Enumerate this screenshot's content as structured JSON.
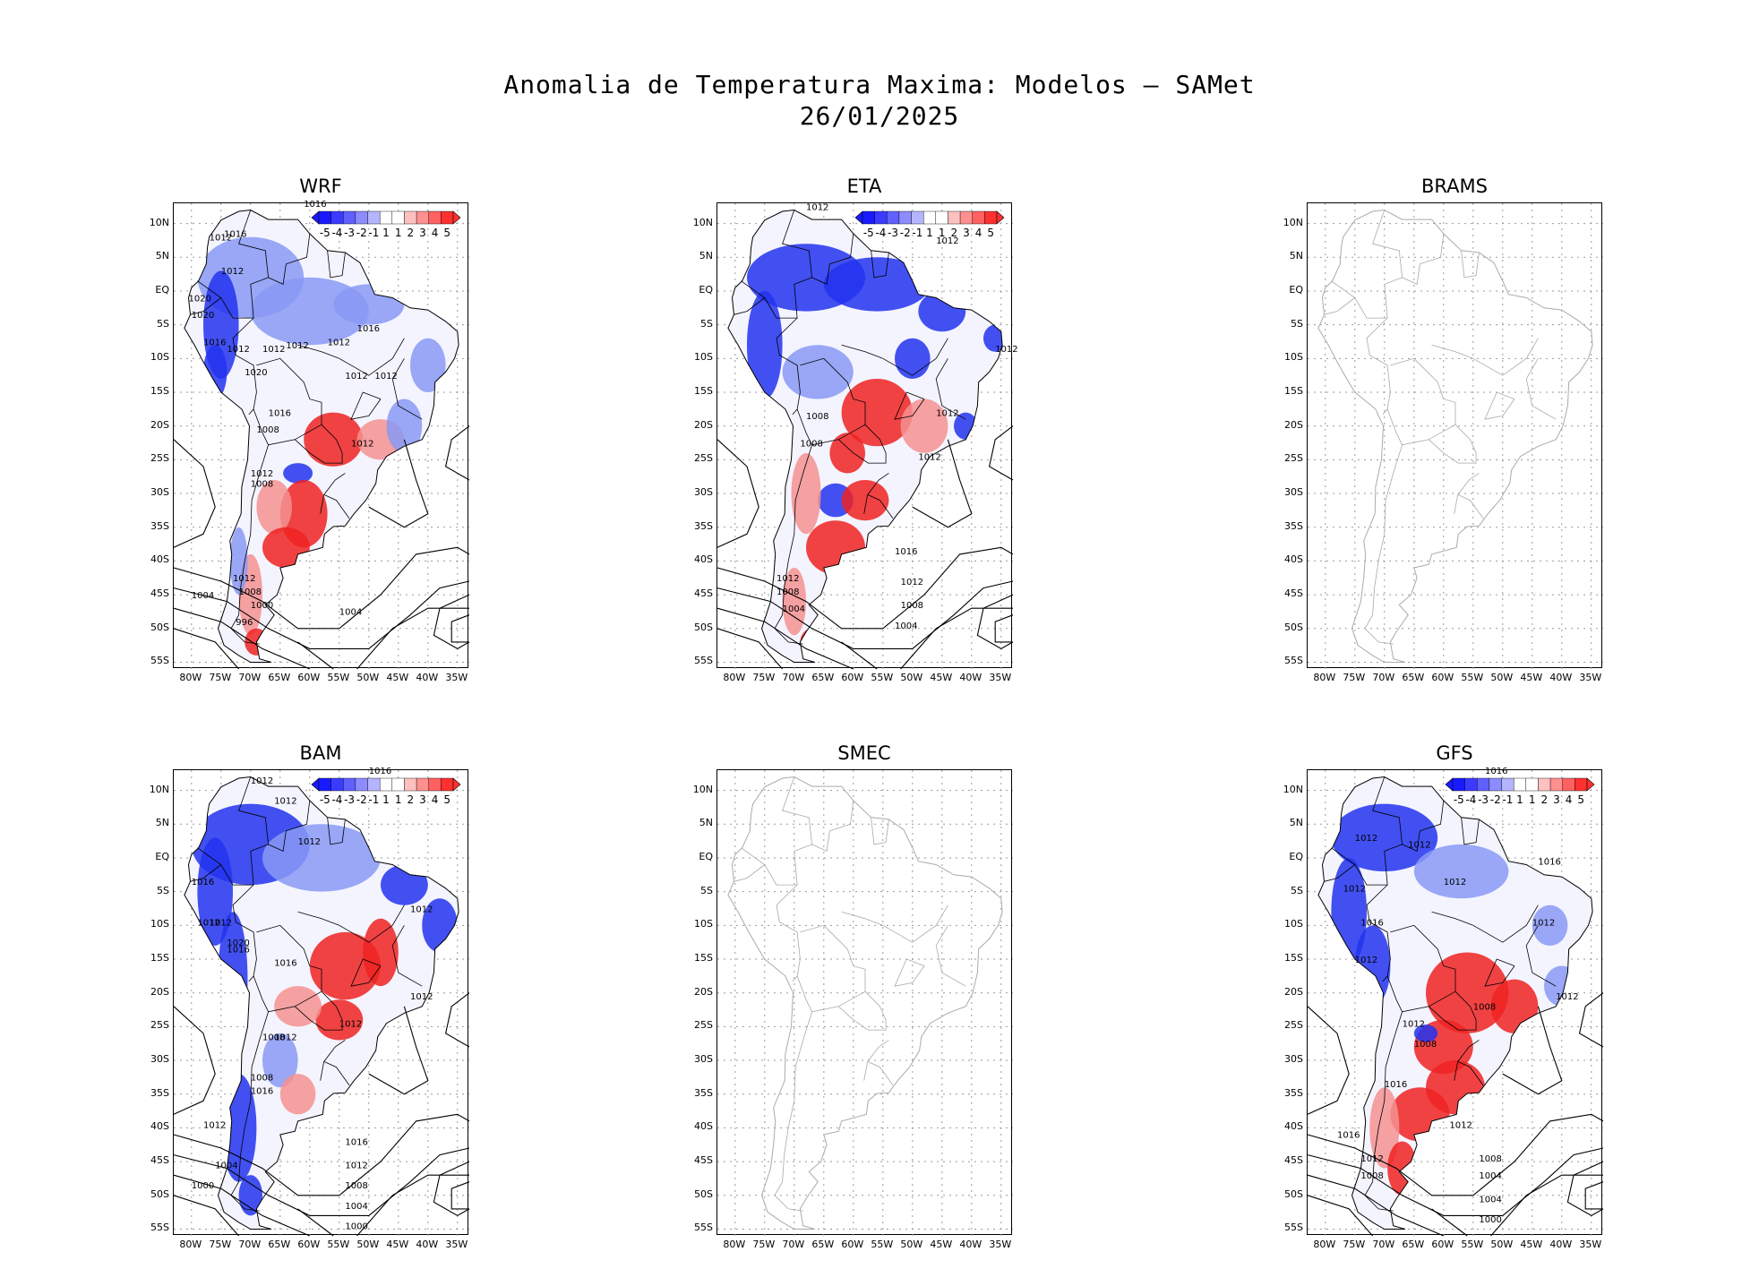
{
  "title": {
    "line1": "Anomalia de Temperatura Maxima: Modelos — SAMet",
    "line2": "26/01/2025"
  },
  "lat_labels": [
    "10N",
    "5N",
    "EQ",
    "5S",
    "10S",
    "15S",
    "20S",
    "25S",
    "30S",
    "35S",
    "40S",
    "45S",
    "50S",
    "55S"
  ],
  "lon_labels": [
    "80W",
    "75W",
    "70W",
    "65W",
    "60W",
    "55W",
    "50W",
    "45W",
    "40W",
    "35W"
  ],
  "colorbar": {
    "labels": [
      "-5",
      "-4",
      "-3",
      "-2",
      "-1",
      "1",
      "1",
      "2",
      "3",
      "4",
      "5"
    ],
    "colors": [
      "#1a1aff",
      "#3b3bff",
      "#6060ff",
      "#8c8cff",
      "#b4b4ff",
      "#ffffff",
      "#ffffff",
      "#ffc0c0",
      "#ff9090",
      "#ff6060",
      "#ff3030"
    ]
  },
  "colors": {
    "cold": "#2233ee",
    "cold_light": "#8899f5",
    "warm": "#ee2222",
    "warm_light": "#f59090",
    "coast_gray": "#aaaaaa",
    "grid": "#999999"
  },
  "panels": [
    {
      "id": "wrf",
      "title": "WRF",
      "has_data": true,
      "isobars": [
        "1016",
        "1012",
        "1016",
        "1012",
        "1020",
        "1020",
        "1016",
        "1012",
        "1012",
        "1012",
        "1012",
        "1016",
        "1020",
        "1012",
        "1012",
        "1016",
        "1012",
        "1008",
        "1012",
        "1008",
        "1004",
        "1000",
        "996",
        "1012",
        "1008",
        "1004"
      ]
    },
    {
      "id": "eta",
      "title": "ETA",
      "has_data": true,
      "isobars": [
        "1012",
        "1012",
        "1012",
        "1012",
        "1008",
        "1008",
        "1012",
        "1016",
        "1012",
        "1008",
        "1012",
        "1008",
        "1004",
        "1004"
      ]
    },
    {
      "id": "brams",
      "title": "BRAMS",
      "has_data": false,
      "isobars": []
    },
    {
      "id": "bam",
      "title": "BAM",
      "has_data": true,
      "isobars": [
        "1016",
        "1012",
        "1012",
        "1012",
        "1016",
        "1012",
        "1012",
        "1012",
        "1020",
        "1016",
        "1016",
        "1012",
        "1012",
        "1008",
        "1012",
        "1008",
        "1016",
        "1012",
        "1004",
        "1000",
        "1016",
        "1012",
        "1008",
        "1004",
        "1000"
      ]
    },
    {
      "id": "smec",
      "title": "SMEC",
      "has_data": false,
      "isobars": []
    },
    {
      "id": "gfs",
      "title": "GFS",
      "has_data": true,
      "isobars": [
        "1016",
        "1012",
        "1012",
        "1012",
        "1016",
        "1012",
        "1016",
        "1012",
        "1012",
        "1012",
        "1008",
        "1012",
        "1008",
        "1016",
        "1012",
        "1008",
        "1004",
        "1016",
        "1012",
        "1008",
        "1004",
        "1000"
      ]
    }
  ]
}
